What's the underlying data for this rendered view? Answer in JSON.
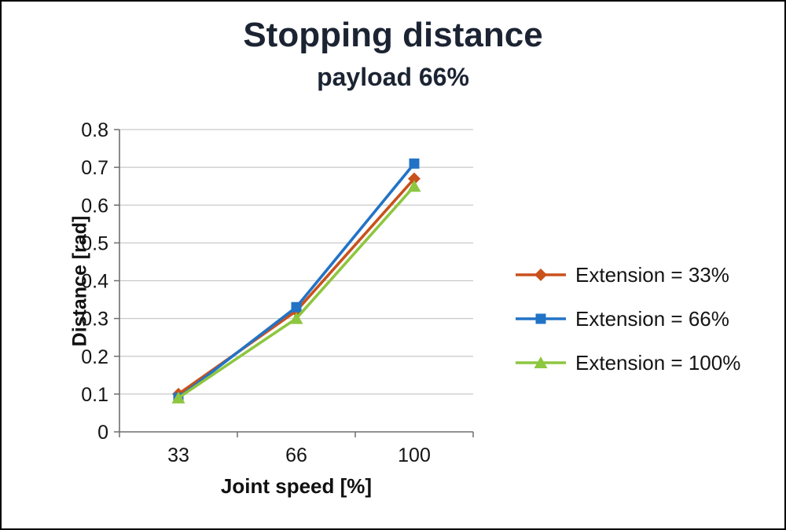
{
  "title": "Stopping distance",
  "subtitle": "payload 66%",
  "chart_data": {
    "type": "line",
    "categories": [
      33,
      66,
      100
    ],
    "x_tick_labels": [
      "33",
      "66",
      "100"
    ],
    "series": [
      {
        "name": "Extension = 33%",
        "values": [
          0.1,
          0.32,
          0.67
        ],
        "color": "#c9511c",
        "marker": "diamond"
      },
      {
        "name": "Extension = 66%",
        "values": [
          0.09,
          0.33,
          0.71
        ],
        "color": "#2273c6",
        "marker": "square"
      },
      {
        "name": "Extension = 100%",
        "values": [
          0.09,
          0.3,
          0.65
        ],
        "color": "#8dc63f",
        "marker": "triangle"
      }
    ],
    "xlabel": "Joint speed [%]",
    "ylabel": "Distance [rad]",
    "ylim": [
      0,
      0.8
    ],
    "ytick_step": 0.1,
    "ytick_labels": [
      "0",
      "0.1",
      "0.2",
      "0.3",
      "0.4",
      "0.5",
      "0.6",
      "0.7",
      "0.8"
    ],
    "grid": true,
    "legend_position": "right",
    "grid_color": "#c9c9c9",
    "axis_color": "#6e6e6e"
  }
}
